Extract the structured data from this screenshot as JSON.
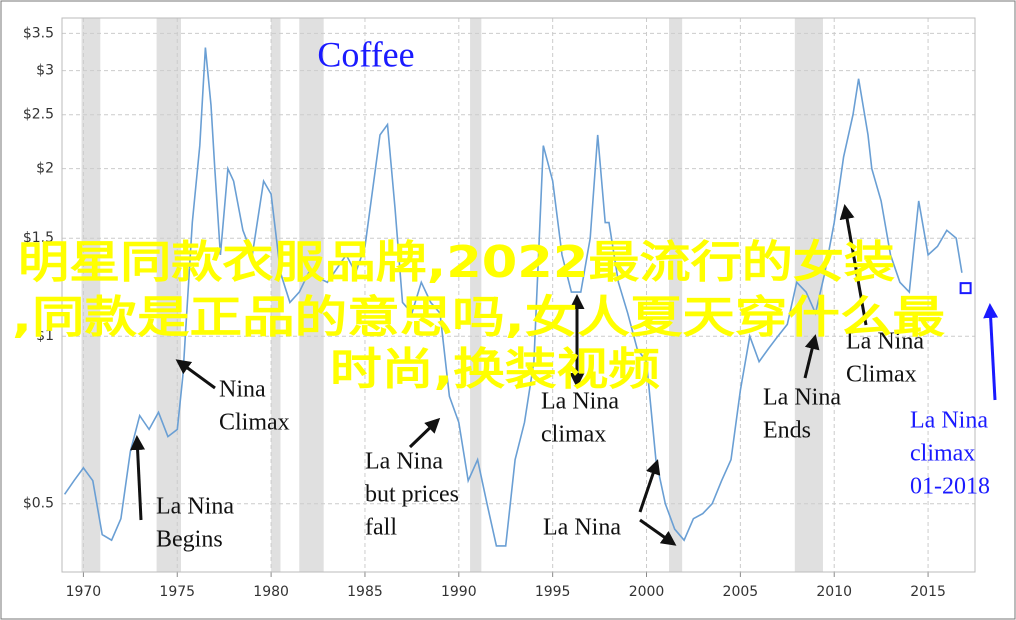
{
  "chart_data": {
    "type": "line",
    "title": "Coffee",
    "title_color": "#1a1aff",
    "log_y": true,
    "xlim": [
      1968.86,
      2017.5
    ],
    "xticks": [
      1970,
      1975,
      1980,
      1985,
      1990,
      1995,
      2000,
      2005,
      2010,
      2015
    ],
    "ylim": [
      0.377,
      3.73
    ],
    "yticks": [
      {
        "value": 0.5,
        "label": "$0.5"
      },
      {
        "value": 1,
        "label": "$1"
      },
      {
        "value": 1.5,
        "label": "$1.5"
      },
      {
        "value": 2,
        "label": "$2"
      },
      {
        "value": 2.5,
        "label": "$2.5"
      },
      {
        "value": 3,
        "label": "$3"
      },
      {
        "value": 3.5,
        "label": "$3.5"
      }
    ],
    "grid": true,
    "shaded_periods": [
      [
        1969.9,
        1970.9
      ],
      [
        1973.9,
        1975.2
      ],
      [
        1980.0,
        1980.5
      ],
      [
        1981.5,
        1982.8
      ],
      [
        1990.6,
        1991.2
      ],
      [
        2001.2,
        2001.9
      ],
      [
        2007.9,
        2009.4
      ]
    ],
    "series": [
      {
        "color": "#6a9fd4",
        "x": [
          1969,
          1969.5,
          1970,
          1970.5,
          1971,
          1971.5,
          1972,
          1972.5,
          1973,
          1973.5,
          1974,
          1974.5,
          1975,
          1975.3,
          1975.8,
          1976.2,
          1976.5,
          1976.8,
          1977,
          1977.3,
          1977.7,
          1978,
          1978.5,
          1979,
          1979.6,
          1980,
          1980.5,
          1981,
          1981.5,
          1982,
          1983,
          1984,
          1984.5,
          1985,
          1985.8,
          1986.2,
          1986.6,
          1987,
          1987.5,
          1988,
          1988.5,
          1989,
          1989.5,
          1990,
          1990.5,
          1991,
          1991.5,
          1992,
          1992.5,
          1993,
          1993.5,
          1994,
          1994.5,
          1995,
          1995.5,
          1996,
          1996.5,
          1997,
          1997.4,
          1997.8,
          1998,
          1998.5,
          1999,
          1999.5,
          2000,
          2000.5,
          2001,
          2001.5,
          2002,
          2002.5,
          2003,
          2003.5,
          2004,
          2004.5,
          2005,
          2005.5,
          2006,
          2006.5,
          2007,
          2007.5,
          2008,
          2008.5,
          2009,
          2009.5,
          2010,
          2010.5,
          2011,
          2011.3,
          2011.8,
          2012,
          2012.5,
          2013,
          2013.5,
          2014,
          2014.5,
          2015,
          2015.5,
          2016,
          2016.5,
          2016.8
        ],
        "values": [
          0.52,
          0.55,
          0.58,
          0.55,
          0.44,
          0.43,
          0.47,
          0.62,
          0.72,
          0.68,
          0.73,
          0.66,
          0.68,
          0.85,
          1.6,
          2.2,
          3.3,
          2.6,
          2.0,
          1.4,
          2.0,
          1.9,
          1.55,
          1.4,
          1.9,
          1.8,
          1.3,
          1.15,
          1.2,
          1.3,
          1.25,
          1.4,
          1.3,
          1.45,
          2.3,
          2.4,
          1.7,
          1.15,
          1.1,
          1.25,
          1.15,
          1.1,
          0.78,
          0.7,
          0.55,
          0.6,
          0.5,
          0.42,
          0.42,
          0.6,
          0.7,
          0.9,
          2.2,
          1.9,
          1.4,
          1.2,
          1.2,
          1.5,
          2.3,
          1.6,
          1.6,
          1.25,
          1.1,
          0.95,
          0.9,
          0.6,
          0.5,
          0.45,
          0.43,
          0.47,
          0.48,
          0.5,
          0.55,
          0.6,
          0.8,
          1.0,
          0.9,
          0.95,
          1.0,
          1.05,
          1.25,
          1.2,
          1.1,
          1.3,
          1.6,
          2.1,
          2.5,
          2.9,
          2.3,
          2.0,
          1.75,
          1.4,
          1.25,
          1.2,
          1.75,
          1.4,
          1.45,
          1.55,
          1.5,
          1.3
        ]
      }
    ],
    "marker": {
      "x": 2017.0,
      "value": 1.22,
      "color": "#1a1aff"
    },
    "annotations": [
      {
        "lines": [
          "Nina",
          "Climax"
        ],
        "color": "#111111"
      },
      {
        "lines": [
          "La Nina",
          "Begins"
        ],
        "color": "#111111"
      },
      {
        "lines": [
          "La Nina",
          "but prices",
          "fall"
        ],
        "color": "#111111"
      },
      {
        "lines": [
          "La Nina",
          "climax"
        ],
        "color": "#111111"
      },
      {
        "lines": [
          "La Nina"
        ],
        "color": "#111111"
      },
      {
        "lines": [
          "La Nina",
          "Climax"
        ],
        "color": "#111111"
      },
      {
        "lines": [
          "La Nina",
          "Ends"
        ],
        "color": "#111111"
      },
      {
        "lines": [
          "La Nina",
          "climax",
          "01-2018"
        ],
        "color": "#1a1aff"
      }
    ]
  },
  "overlay": {
    "color": "#ffff00",
    "lines": [
      "明星同款衣服品牌,2022最流行的女装",
      ",同款是正品的意思吗,女人夏天穿什么最",
      "时尚,换装视频"
    ]
  }
}
